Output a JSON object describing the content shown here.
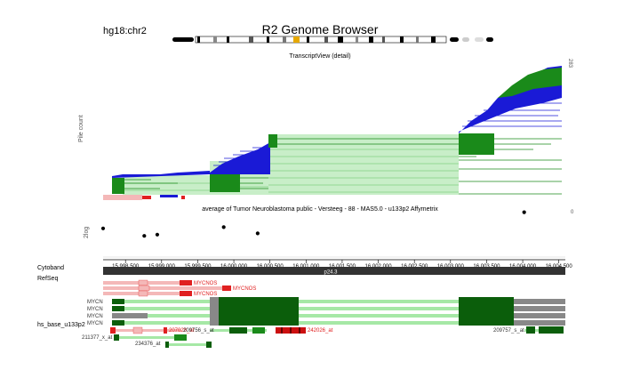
{
  "header": {
    "build_label": "hg18:chr2",
    "title": "R2 Genome Browser"
  },
  "pileup": {
    "view_name": "TranscriptView (detail)",
    "axis_label": "Pile count",
    "max_label": "283"
  },
  "expression": {
    "title": "average of Tumor Neuroblastoma public - Versteeg - 88 - MAS5.0 - u133p2 Affymetrix",
    "axis_label": "2log",
    "scale_label": "0"
  },
  "ruler": {
    "ticks": [
      "15,998,500",
      "15,999,000",
      "15,999,500",
      "16,000,000",
      "16,000,500",
      "16,001,000",
      "16,001,500",
      "16,002,000",
      "16,002,500",
      "16,003,000",
      "16,003,500",
      "16,004,000",
      "16,004,500"
    ]
  },
  "tracks": {
    "cytoband_label": "Cytoband",
    "band_name": "p24.3",
    "refseq_label": "RefSeq",
    "probe_label": "hs_base_u133p2",
    "refseq_genes": [
      "MYCNOS",
      "MYCNOS",
      "MYCNOS",
      "MYCN",
      "MYCN",
      "MYCN",
      "MYCN"
    ],
    "probes": [
      "207028_at",
      "209756_s_at",
      "242026_at",
      "209757_s_at",
      "211377_x_at",
      "234376_at"
    ]
  },
  "colors": {
    "plus_strand": "#1a1ad6",
    "minus_strand": "#1a8a1a",
    "light_green": "#a6e8a6",
    "dark_green": "#0b5e0b",
    "refseq_red": "#e02020",
    "light_pink": "#f4b8b8",
    "cytoband": "#333333"
  },
  "expression_points": [
    {
      "position": 15998190,
      "value": 4.6
    },
    {
      "position": 15998760,
      "value": 3.4
    },
    {
      "position": 15998940,
      "value": 3.6
    },
    {
      "position": 15999860,
      "value": 4.8
    },
    {
      "position": 16000330,
      "value": 3.8
    },
    {
      "position": 16004020,
      "value": 7.2
    }
  ]
}
